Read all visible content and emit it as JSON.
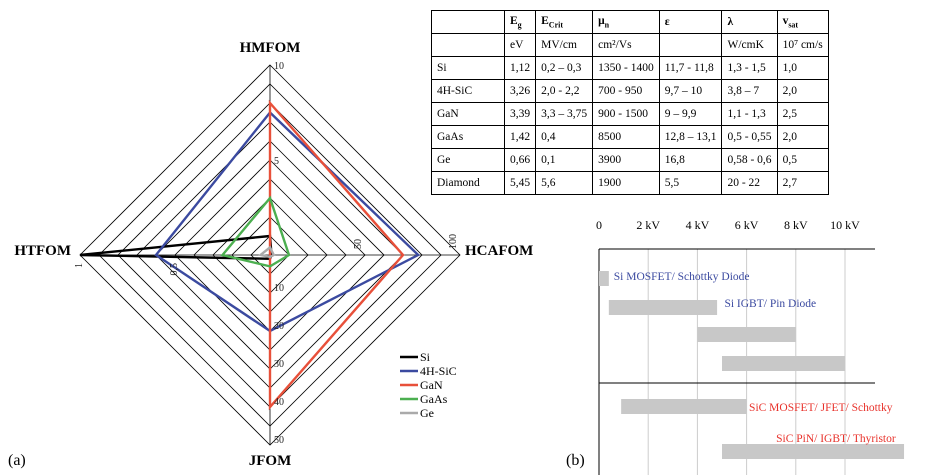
{
  "panel_a": {
    "label": "(a)"
  },
  "panel_b": {
    "label": "(b)"
  },
  "chart_data": [
    {
      "type": "radar",
      "axes": [
        {
          "name": "HMFOM",
          "ticks": [
            "5",
            "10"
          ],
          "range": [
            0,
            10
          ]
        },
        {
          "name": "HCAFOM",
          "ticks": [
            "50",
            "100"
          ],
          "range": [
            0,
            100
          ]
        },
        {
          "name": "JFOM",
          "ticks": [
            "10",
            "20",
            "30",
            "40",
            "50"
          ],
          "range": [
            0,
            50
          ]
        },
        {
          "name": "HTFOM",
          "ticks": [
            "0.5",
            "1"
          ],
          "tick_labels": [
            "0,5",
            "1"
          ],
          "range": [
            0,
            1
          ]
        }
      ],
      "grid_rings": 10,
      "series": [
        {
          "name": "Si",
          "color": "#000000",
          "values": {
            "HMFOM": 1.0,
            "HCAFOM": 0.8,
            "JFOM": 1.0,
            "HTFOM": 1.0
          }
        },
        {
          "name": "4H-SiC",
          "color": "#3b4aa0",
          "values": {
            "HMFOM": 7.5,
            "HCAFOM": 78,
            "JFOM": 20,
            "HTFOM": 0.6
          }
        },
        {
          "name": "GaN",
          "color": "#e8503a",
          "values": {
            "HMFOM": 8.0,
            "HCAFOM": 70,
            "JFOM": 40,
            "HTFOM": 0.0
          }
        },
        {
          "name": "GaAs",
          "color": "#4caf50",
          "values": {
            "HMFOM": 3.0,
            "HCAFOM": 10,
            "JFOM": 3.0,
            "HTFOM": 0.25
          }
        },
        {
          "name": "Ge",
          "color": "#aaaaaa",
          "values": {
            "HMFOM": 0.4,
            "HCAFOM": 2,
            "JFOM": 0.5,
            "HTFOM": 0.05
          }
        }
      ],
      "legend": "bottom-right"
    },
    {
      "type": "table",
      "columns": [
        {
          "sym": "E",
          "sub": "g"
        },
        {
          "sym": "E",
          "sub": "Crit"
        },
        {
          "sym": "μ",
          "sub": "n"
        },
        {
          "sym": "ε",
          "sub": ""
        },
        {
          "sym": "λ",
          "sub": ""
        },
        {
          "sym": "v",
          "sub": "sat"
        }
      ],
      "units": [
        "eV",
        "MV/cm",
        "cm²/Vs",
        "",
        "W/cmK",
        "10⁷ cm/s"
      ],
      "rows": [
        [
          "Si",
          "1,12",
          "0,2 – 0,3",
          "1350 - 1400",
          "11,7 - 11,8",
          "1,3 - 1,5",
          "1,0"
        ],
        [
          "4H-SiC",
          "3,26",
          "2,0 - 2,2",
          "700 - 950",
          "9,7 – 10",
          "3,8 – 7",
          "2,0"
        ],
        [
          "GaN",
          "3,39",
          "3,3 – 3,75",
          "900 - 1500",
          "9 – 9,9",
          "1,1 - 1,3",
          "2,5"
        ],
        [
          "GaAs",
          "1,42",
          "0,4",
          "8500",
          "12,8 – 13,1",
          "0,5 - 0,55",
          "2,0"
        ],
        [
          "Ge",
          "0,66",
          "0,1",
          "3900",
          "16,8",
          "0,58 - 0,6",
          "0,5"
        ],
        [
          "Diamond",
          "5,45",
          "5,6",
          "1900",
          "5,5",
          "20 - 22",
          "2,7"
        ]
      ]
    },
    {
      "type": "bar",
      "orientation": "horizontal-range",
      "x_ticks": [
        "0",
        "2 kV",
        "4 kV",
        "6 kV",
        "8 kV",
        "10 kV"
      ],
      "x_range": [
        0,
        12
      ],
      "bars": [
        {
          "start": 0.0,
          "end": 0.4,
          "label": "Si MOSFET/ Schottky Diode",
          "label_color": "#3b4aa0",
          "group": "Si"
        },
        {
          "start": 0.4,
          "end": 4.8,
          "label": "Si IGBT/ Pin Diode",
          "label_color": "#3b4aa0",
          "group": "Si"
        },
        {
          "start": 4.0,
          "end": 8.0,
          "label": "",
          "group": "Si"
        },
        {
          "start": 5.0,
          "end": 10.0,
          "label": "",
          "group": "Si"
        },
        {
          "start": 0.9,
          "end": 6.0,
          "label": "SiC MOSFET/ JFET/ Schottky",
          "label_color": "#e8312a",
          "group": "SiC"
        },
        {
          "start": 5.0,
          "end": 12.4,
          "label": "SiC PiN/ IGBT/ Thyristor",
          "label_color": "#e8312a",
          "group": "SiC"
        }
      ]
    }
  ]
}
